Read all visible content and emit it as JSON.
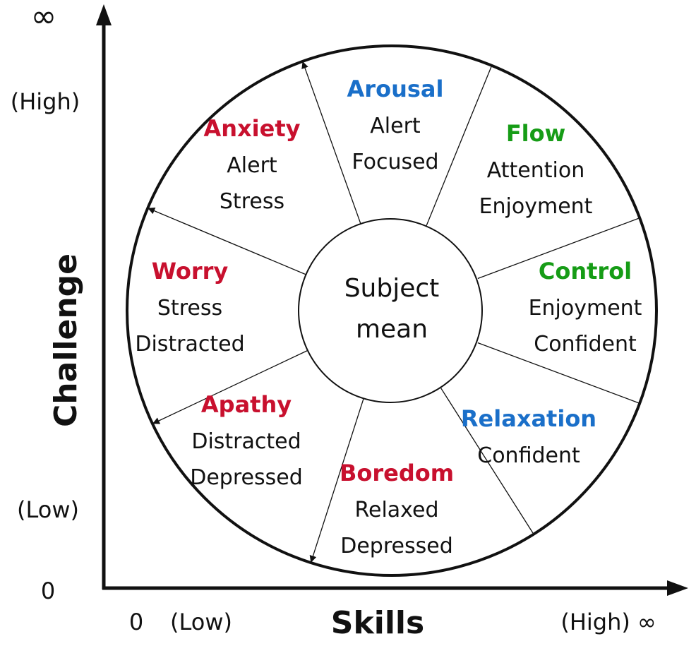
{
  "axes": {
    "y_title": "Challenge",
    "x_title": "Skills",
    "y_top_symbol": "∞",
    "y_high": "(High)",
    "y_low": "(Low)",
    "y_zero": "0",
    "x_zero": "0",
    "x_low": "(Low)",
    "x_high": "(High) ∞"
  },
  "center": {
    "line1": "Subject",
    "line2": "mean"
  },
  "colors": {
    "red": "#c8102e",
    "blue": "#1a6fc9",
    "green": "#169c16",
    "black": "#111111"
  },
  "sectors": [
    {
      "title": "Arousal",
      "color": "blue",
      "words": [
        "Alert",
        "Focused"
      ]
    },
    {
      "title": "Flow",
      "color": "green",
      "words": [
        "Attention",
        "Enjoyment"
      ]
    },
    {
      "title": "Control",
      "color": "green",
      "words": [
        "Enjoyment",
        "Confident"
      ]
    },
    {
      "title": "Relaxation",
      "color": "blue",
      "words": [
        "Confident"
      ]
    },
    {
      "title": "Boredom",
      "color": "red",
      "words": [
        "Relaxed",
        "Depressed"
      ]
    },
    {
      "title": "Apathy",
      "color": "red",
      "words": [
        "Distracted",
        "Depressed"
      ]
    },
    {
      "title": "Worry",
      "color": "red",
      "words": [
        "Stress",
        "Distracted"
      ]
    },
    {
      "title": "Anxiety",
      "color": "red",
      "words": [
        "Alert",
        "Stress"
      ]
    }
  ]
}
